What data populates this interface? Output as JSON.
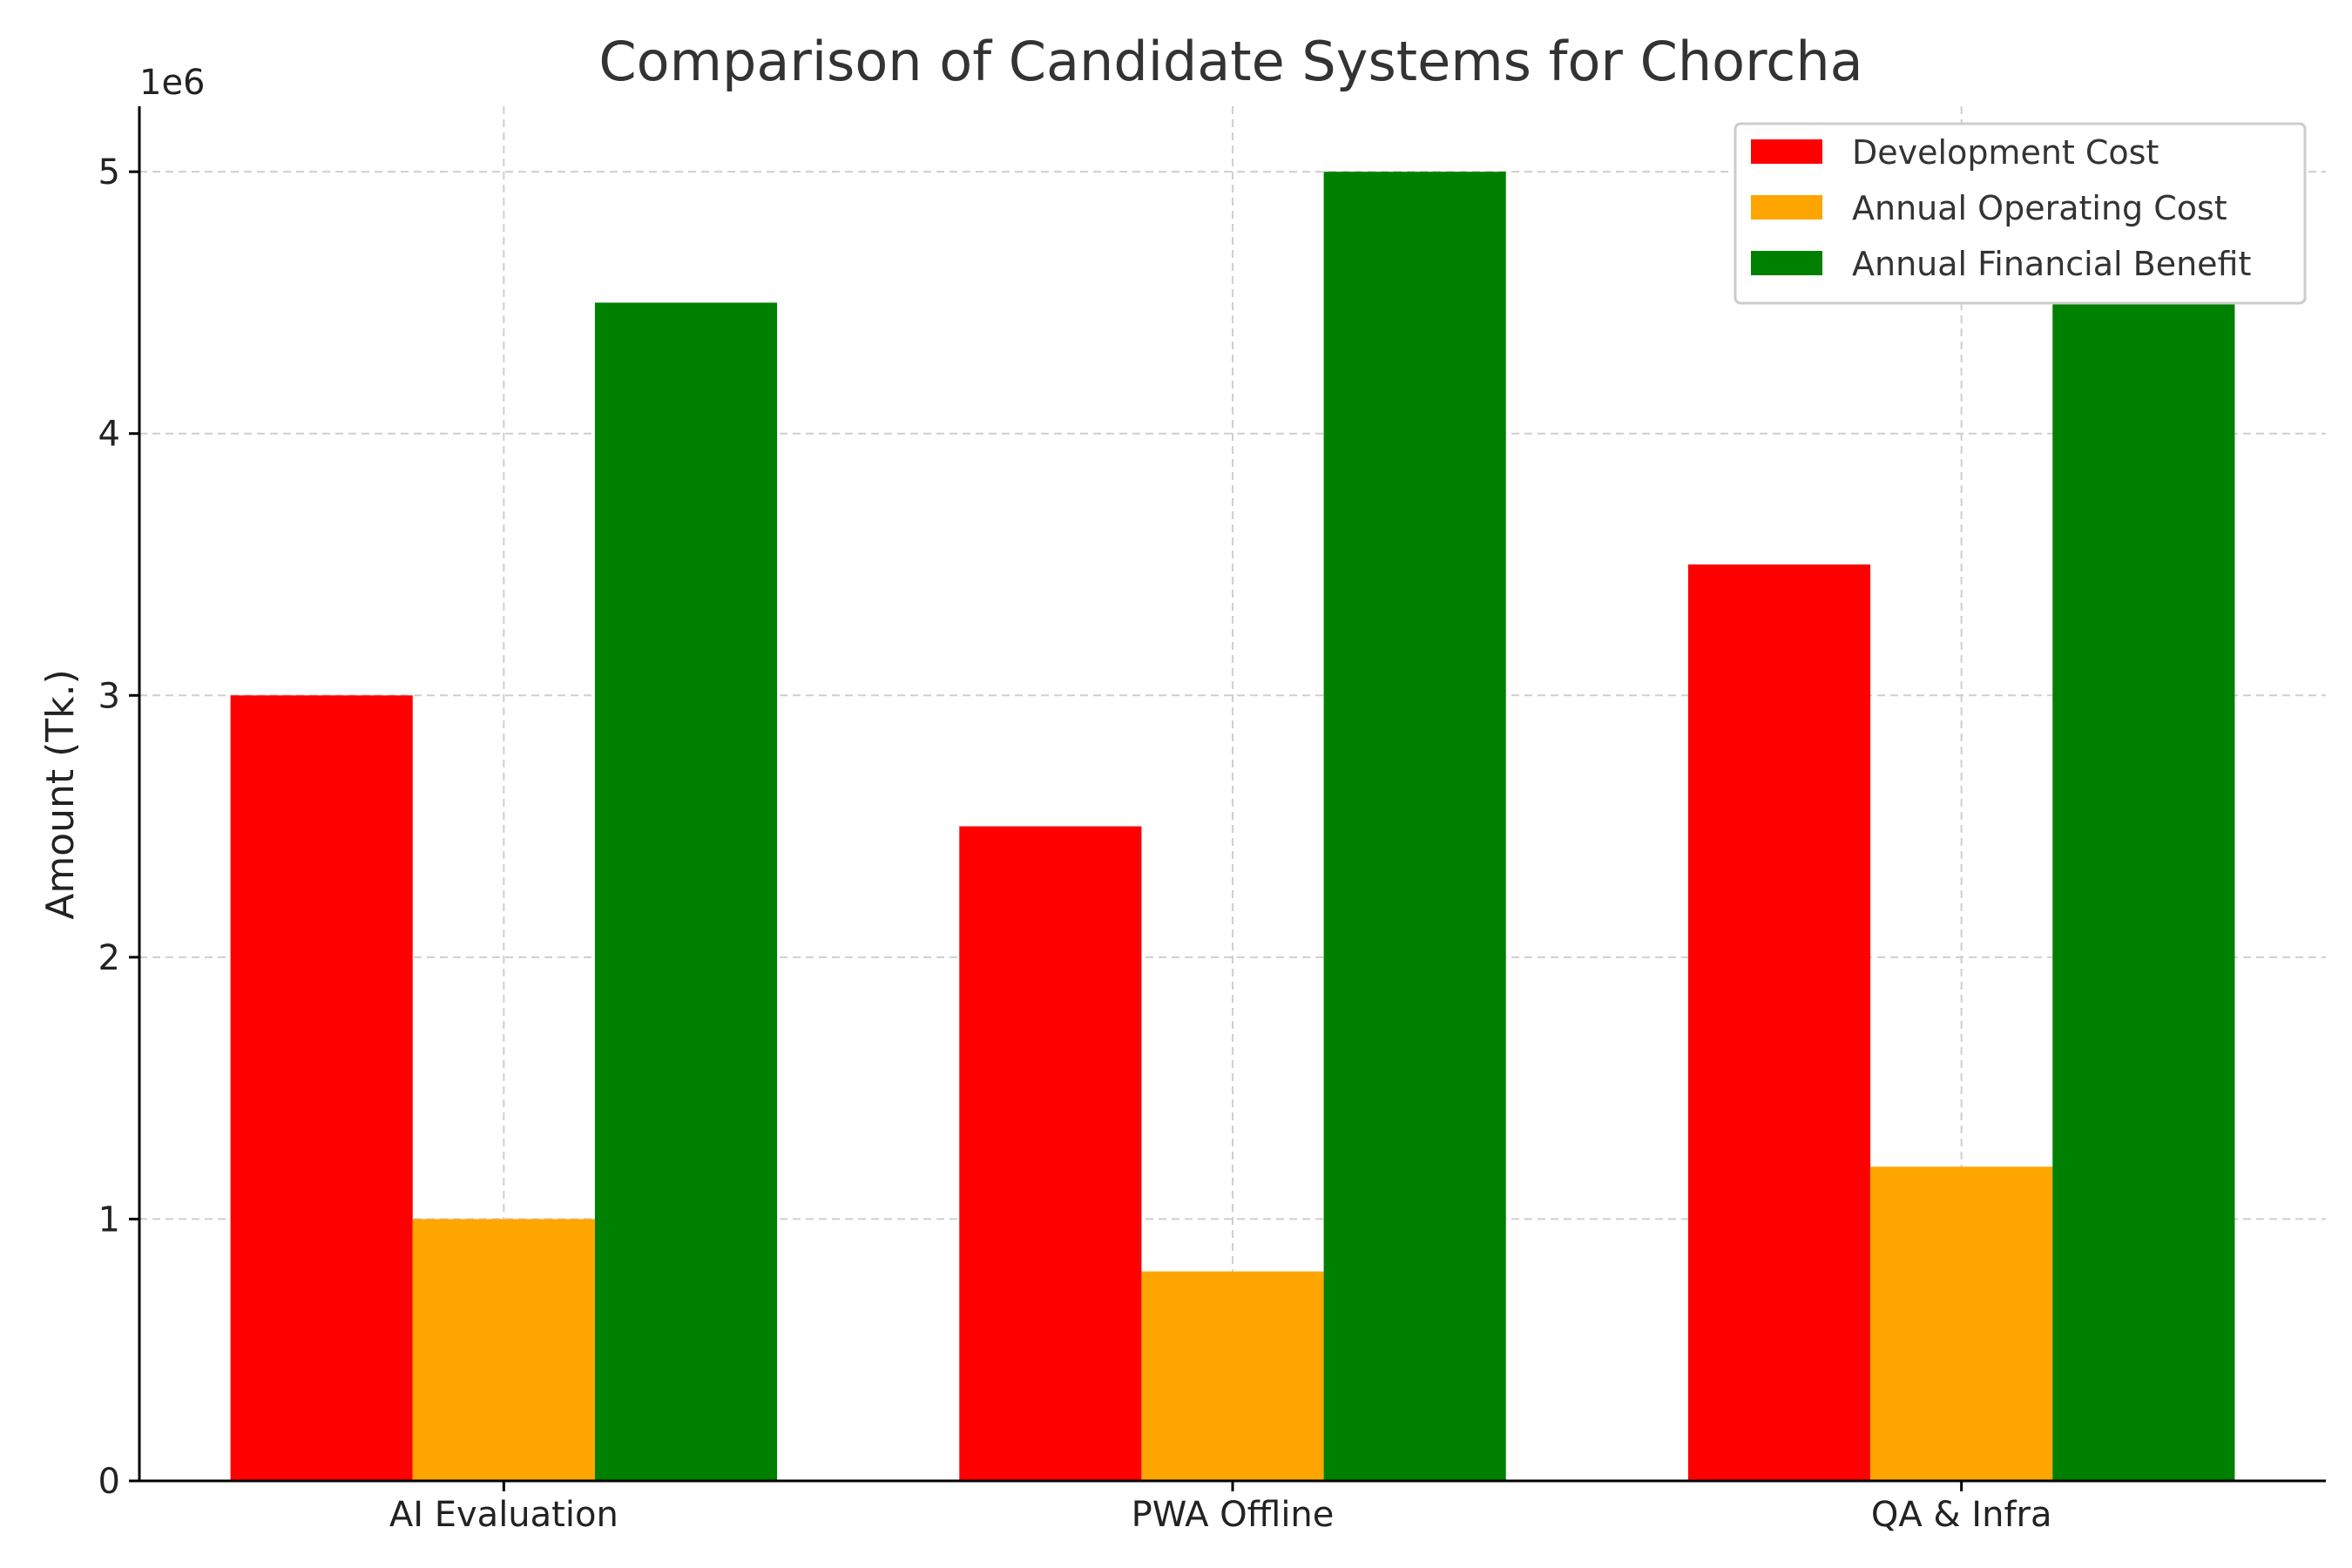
{
  "chart_data": {
    "type": "bar",
    "title": "Comparison of Candidate Systems for Chorcha",
    "xlabel": "",
    "ylabel": "Amount (Tk.)",
    "y_offset_label": "1e6",
    "categories": [
      "AI Evaluation",
      "PWA Offline",
      "QA & Infra"
    ],
    "series": [
      {
        "name": "Development Cost",
        "color": "#ff0000",
        "values": [
          3000000,
          2500000,
          3500000
        ]
      },
      {
        "name": "Annual Operating Cost",
        "color": "#ffa500",
        "values": [
          1000000,
          800000,
          1200000
        ]
      },
      {
        "name": "Annual Financial Benefit",
        "color": "#008000",
        "values": [
          4500000,
          5000000,
          4500000
        ]
      }
    ],
    "ylim": [
      0,
      5250000
    ],
    "yticks": [
      0,
      1000000,
      2000000,
      3000000,
      4000000,
      5000000
    ],
    "ytick_labels": [
      "0",
      "1",
      "2",
      "3",
      "4",
      "5"
    ],
    "grid": true,
    "legend_position": "top-right"
  }
}
